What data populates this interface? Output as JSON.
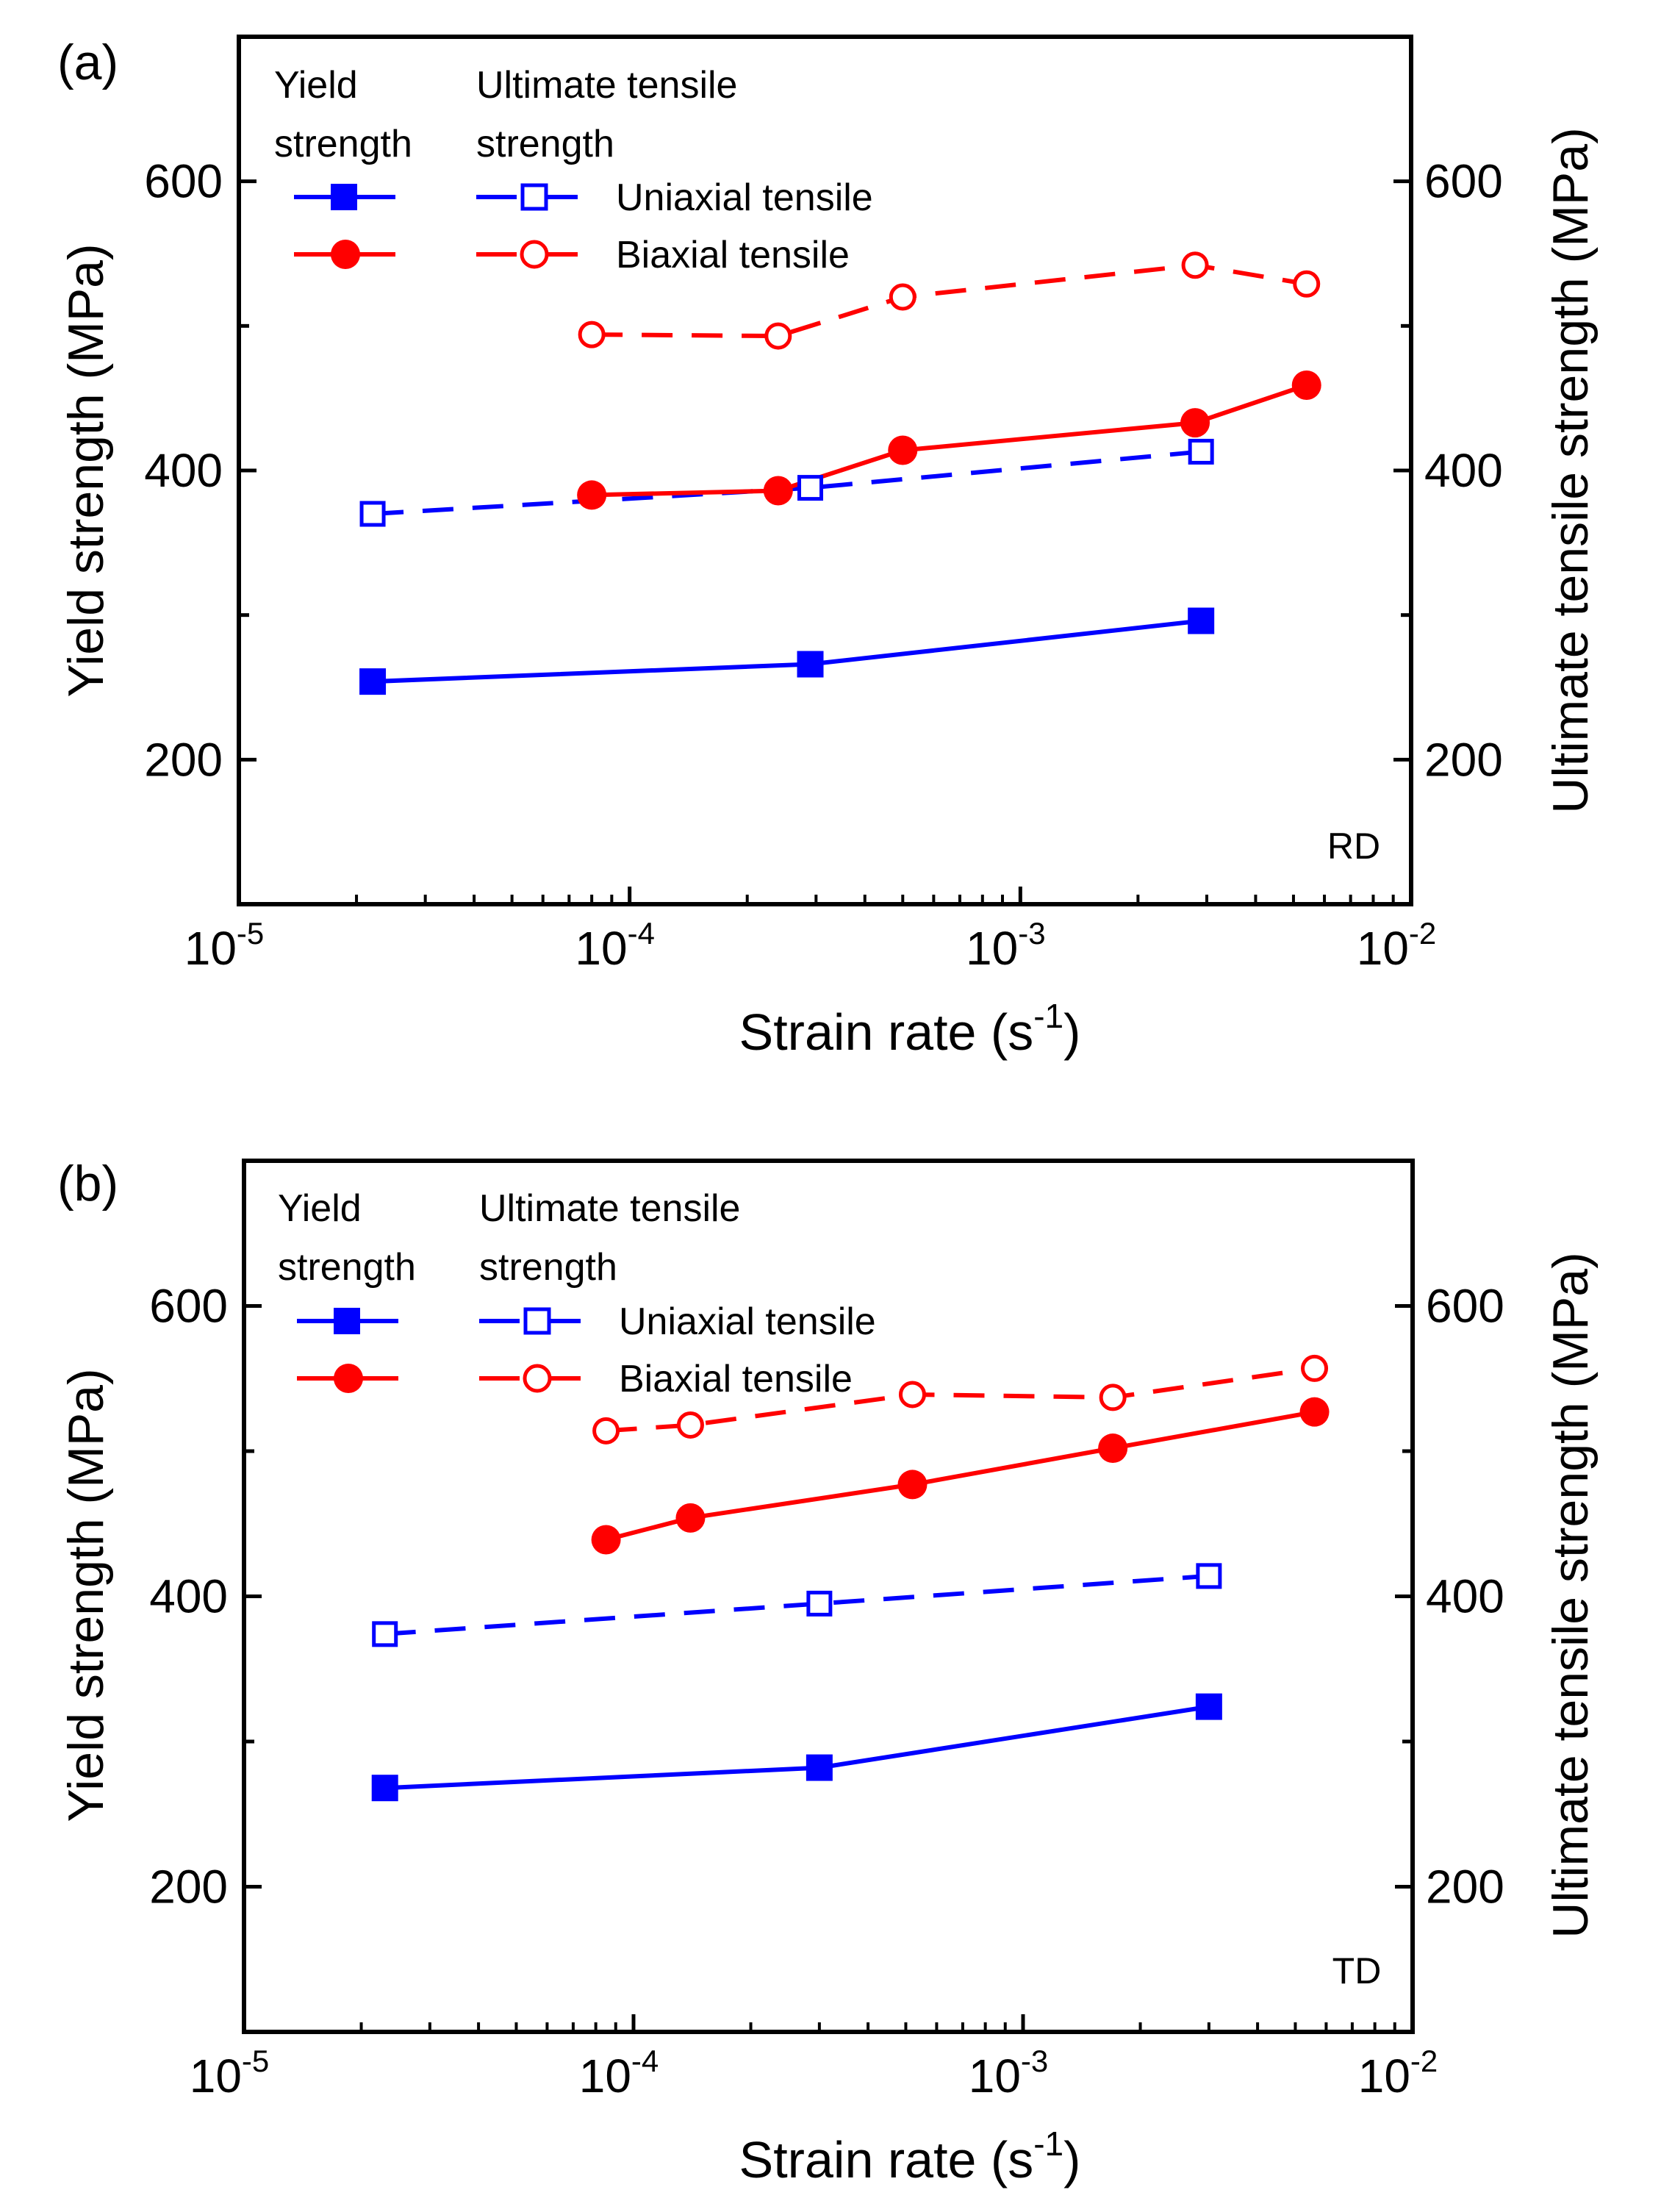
{
  "chart_data": [
    {
      "panel": "(a)",
      "type": "line",
      "xscale": "log",
      "xlim": [
        1e-05,
        0.01
      ],
      "ylim": [
        100,
        700
      ],
      "y2lim": [
        100,
        700
      ],
      "xlabel_main": "Strain rate (s",
      "xlabel_sup": "-1",
      "xlabel_end": ")",
      "ylabel": "Yield strength (MPa)",
      "y2label": "Ultimate tensile strength (MPa)",
      "yticks": [
        "200",
        "400",
        "600"
      ],
      "xticks": [
        {
          "base": "10",
          "exp": "-5",
          "value": 1e-05
        },
        {
          "base": "10",
          "exp": "-4",
          "value": 0.0001
        },
        {
          "base": "10",
          "exp": "-3",
          "value": 0.001
        },
        {
          "base": "10",
          "exp": "-2",
          "value": 0.01
        }
      ],
      "annotation": "RD",
      "legend": {
        "col1_line1": "Yield",
        "col1_line2": "strength",
        "col2_line1": "Ultimate tensile",
        "col2_line2": "strength",
        "row1": "Uniaxial tensile",
        "row2": "Biaxial tensile"
      },
      "series": [
        {
          "name": "Uniaxial tensile - Yield strength",
          "color": "#0000ff",
          "marker": "square-filled",
          "dash": "solid",
          "axis": "left",
          "x": [
            2.2e-05,
            0.00029,
            0.0029
          ],
          "y": [
            254,
            266,
            296
          ]
        },
        {
          "name": "Uniaxial tensile - Ultimate tensile strength",
          "color": "#0000ff",
          "marker": "square-open",
          "dash": "dashed",
          "axis": "right",
          "x": [
            2.2e-05,
            0.00029,
            0.0029
          ],
          "y": [
            370,
            388,
            413
          ]
        },
        {
          "name": "Biaxial tensile - Yield strength",
          "color": "#ff0000",
          "marker": "circle-filled",
          "dash": "solid",
          "axis": "left",
          "x": [
            8e-05,
            0.00024,
            0.0005,
            0.0028,
            0.0054
          ],
          "y": [
            383,
            386,
            414,
            433,
            459
          ]
        },
        {
          "name": "Biaxial tensile - Ultimate tensile strength",
          "color": "#ff0000",
          "marker": "circle-open",
          "dash": "dashed",
          "axis": "right",
          "x": [
            8e-05,
            0.00024,
            0.0005,
            0.0028,
            0.0054
          ],
          "y": [
            494,
            493,
            520,
            542,
            529
          ]
        }
      ]
    },
    {
      "panel": "(b)",
      "type": "line",
      "xscale": "log",
      "xlim": [
        1e-05,
        0.01
      ],
      "ylim": [
        100,
        700
      ],
      "y2lim": [
        100,
        700
      ],
      "xlabel_main": "Strain rate (s",
      "xlabel_sup": "-1",
      "xlabel_end": ")",
      "ylabel": "Yield strength (MPa)",
      "y2label": "Ultimate tensile strength (MPa)",
      "yticks": [
        "200",
        "400",
        "600"
      ],
      "xticks": [
        {
          "base": "10",
          "exp": "-5",
          "value": 1e-05
        },
        {
          "base": "10",
          "exp": "-4",
          "value": 0.0001
        },
        {
          "base": "10",
          "exp": "-3",
          "value": 0.001
        },
        {
          "base": "10",
          "exp": "-2",
          "value": 0.01
        }
      ],
      "annotation": "TD",
      "legend": {
        "col1_line1": "Yield",
        "col1_line2": "strength",
        "col2_line1": "Ultimate tensile",
        "col2_line2": "strength",
        "row1": "Uniaxial tensile",
        "row2": "Biaxial tensile"
      },
      "series": [
        {
          "name": "Uniaxial tensile - Yield strength",
          "color": "#0000ff",
          "marker": "square-filled",
          "dash": "solid",
          "axis": "left",
          "x": [
            2.3e-05,
            0.0003,
            0.003
          ],
          "y": [
            268,
            282,
            324
          ]
        },
        {
          "name": "Uniaxial tensile - Ultimate tensile strength",
          "color": "#0000ff",
          "marker": "square-open",
          "dash": "dashed",
          "axis": "right",
          "x": [
            2.3e-05,
            0.0003,
            0.003
          ],
          "y": [
            374,
            395,
            414
          ]
        },
        {
          "name": "Biaxial tensile - Yield strength",
          "color": "#ff0000",
          "marker": "circle-filled",
          "dash": "solid",
          "axis": "left",
          "x": [
            8.5e-05,
            0.00014,
            0.00052,
            0.0017,
            0.0056
          ],
          "y": [
            439,
            454,
            477,
            502,
            527
          ]
        },
        {
          "name": "Biaxial tensile - Ultimate tensile strength",
          "color": "#ff0000",
          "marker": "circle-open",
          "dash": "dashed",
          "axis": "right",
          "x": [
            8.5e-05,
            0.00014,
            0.00052,
            0.0017,
            0.0056
          ],
          "y": [
            514,
            518,
            539,
            537,
            557
          ]
        }
      ]
    }
  ]
}
